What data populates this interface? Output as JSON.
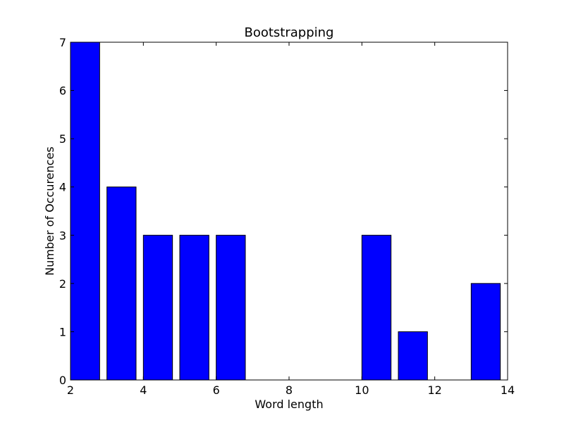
{
  "chart_data": {
    "type": "bar",
    "title": "Bootstrapping",
    "xlabel": "Word length",
    "ylabel": "Number of Occurences",
    "xlim": [
      2,
      14
    ],
    "ylim": [
      0,
      7
    ],
    "xticks": [
      2,
      4,
      6,
      8,
      10,
      12,
      14
    ],
    "yticks": [
      0,
      1,
      2,
      3,
      4,
      5,
      6,
      7
    ],
    "bar_width": 0.8,
    "bars": [
      {
        "x": 2,
        "value": 7
      },
      {
        "x": 3,
        "value": 4
      },
      {
        "x": 4,
        "value": 3
      },
      {
        "x": 5,
        "value": 3
      },
      {
        "x": 6,
        "value": 3
      },
      {
        "x": 10,
        "value": 3
      },
      {
        "x": 11,
        "value": 1
      },
      {
        "x": 13,
        "value": 2
      }
    ],
    "grid": false,
    "colors": {
      "bar_fill": "#0000ff",
      "bar_edge": "#000000",
      "axes": "#000000",
      "background": "#ffffff"
    }
  }
}
